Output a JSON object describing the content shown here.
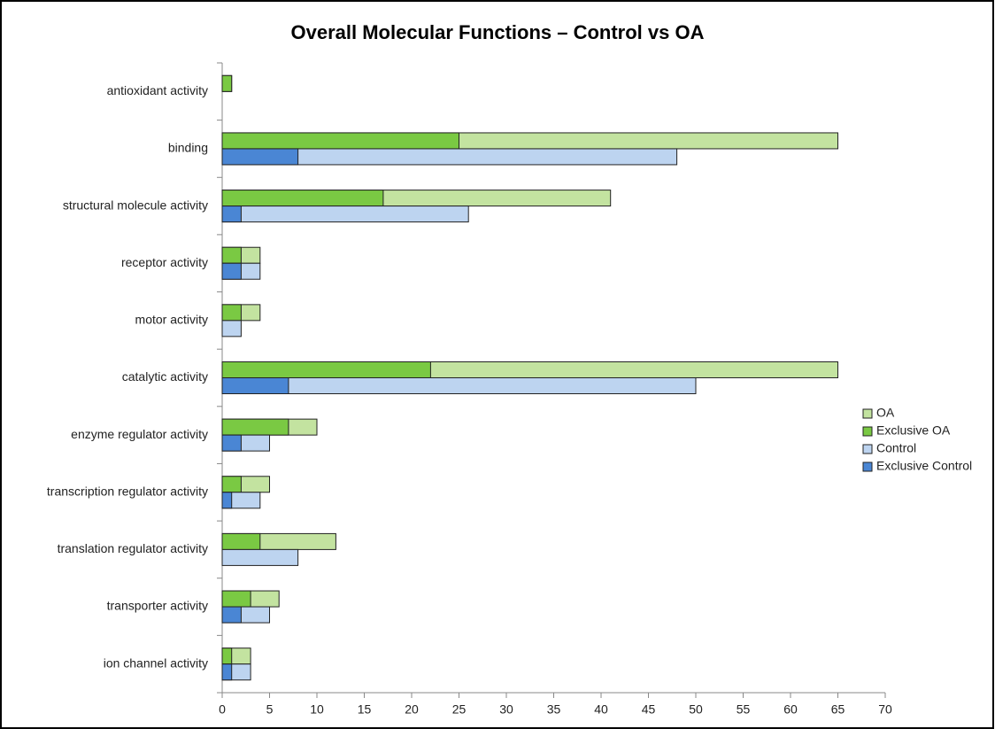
{
  "chart_data": {
    "type": "bar",
    "orientation": "horizontal",
    "title": "Overall Molecular Functions – Control vs OA",
    "categories": [
      "antioxidant activity",
      "binding",
      "structural molecule activity",
      "receptor activity",
      "motor activity",
      "catalytic activity",
      "enzyme regulator activity",
      "transcription regulator activity",
      "translation regulator activity",
      "transporter activity",
      "ion channel activity"
    ],
    "series": [
      {
        "name": "OA",
        "color": "#c3e3a0",
        "values": [
          1,
          65,
          41,
          4,
          4,
          65,
          10,
          5,
          12,
          6,
          3
        ]
      },
      {
        "name": "Exclusive OA",
        "color": "#7ac943",
        "values": [
          1,
          25,
          17,
          2,
          2,
          22,
          7,
          2,
          4,
          3,
          1
        ]
      },
      {
        "name": "Control",
        "color": "#bdd4f0",
        "values": [
          0,
          48,
          26,
          4,
          2,
          50,
          5,
          4,
          8,
          5,
          3
        ]
      },
      {
        "name": "Exclusive Control",
        "color": "#4a86d4",
        "values": [
          0,
          8,
          2,
          2,
          0,
          7,
          2,
          1,
          0,
          2,
          1
        ]
      }
    ],
    "xlim": [
      0,
      70
    ],
    "xticks": [
      0,
      5,
      10,
      15,
      20,
      25,
      30,
      35,
      40,
      45,
      50,
      55,
      60,
      65,
      70
    ],
    "legend": "right"
  }
}
